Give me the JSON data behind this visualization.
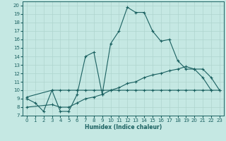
{
  "bg_color": "#c5e8e3",
  "grid_color": "#b0d8d2",
  "line_color": "#1a6060",
  "xlabel": "Humidex (Indice chaleur)",
  "xlim": [
    -0.5,
    23.5
  ],
  "ylim": [
    7,
    20.5
  ],
  "xticks": [
    0,
    1,
    2,
    3,
    4,
    5,
    6,
    7,
    8,
    9,
    10,
    11,
    12,
    13,
    14,
    15,
    16,
    17,
    18,
    19,
    20,
    21,
    22,
    23
  ],
  "yticks": [
    7,
    8,
    9,
    10,
    11,
    12,
    13,
    14,
    15,
    16,
    17,
    18,
    19,
    20
  ],
  "main_x": [
    0,
    1,
    2,
    3,
    4,
    5,
    6,
    7,
    8,
    9,
    10,
    11,
    12,
    13,
    14,
    15,
    16,
    17,
    18,
    19,
    20,
    21,
    22
  ],
  "main_y": [
    9.0,
    8.5,
    7.5,
    10.0,
    7.5,
    7.5,
    9.5,
    14.0,
    14.5,
    9.5,
    15.5,
    17.0,
    19.8,
    19.2,
    19.2,
    17.0,
    15.8,
    16.0,
    13.5,
    12.5,
    12.5,
    11.5,
    10.0
  ],
  "flat_x": [
    0,
    3,
    4,
    5,
    6,
    7,
    8,
    9,
    10,
    11,
    12,
    13,
    14,
    15,
    16,
    17,
    18,
    19,
    20,
    21,
    22,
    23
  ],
  "flat_y": [
    9.2,
    10.0,
    10.0,
    10.0,
    10.0,
    10.0,
    10.0,
    10.0,
    10.0,
    10.0,
    10.0,
    10.0,
    10.0,
    10.0,
    10.0,
    10.0,
    10.0,
    10.0,
    10.0,
    10.0,
    10.0,
    10.0
  ],
  "rising_x": [
    0,
    3,
    4,
    5,
    6,
    7,
    8,
    9,
    10,
    11,
    12,
    13,
    14,
    15,
    16,
    17,
    18,
    19,
    20,
    21,
    22,
    23
  ],
  "rising_y": [
    8.0,
    8.3,
    8.0,
    8.0,
    8.5,
    9.0,
    9.2,
    9.5,
    10.0,
    10.3,
    10.8,
    11.0,
    11.5,
    11.8,
    12.0,
    12.3,
    12.5,
    12.8,
    12.5,
    12.5,
    11.5,
    10.0
  ]
}
